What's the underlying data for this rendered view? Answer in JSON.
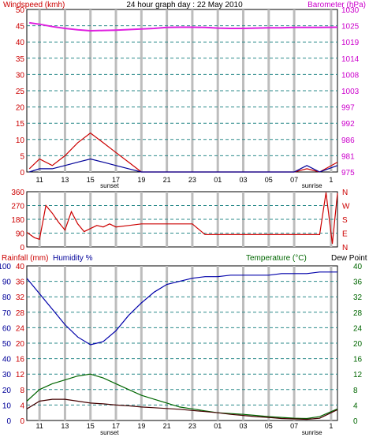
{
  "header": {
    "left_title": "Windspeed (kmh)",
    "center_title": "24 hour graph day : 22 May 2010",
    "right_title": "Barometer (hPa)",
    "rain_label": "Rainfall (mm)",
    "humidity_label": "Humidity %",
    "temp_label": "Temperature (°C)",
    "dew_label": "Dew Point"
  },
  "colors": {
    "wind": "#cc0000",
    "gust": "#000099",
    "barometer": "#e020e0",
    "direction": "#cc0000",
    "humidity": "#0000aa",
    "temperature": "#006600",
    "dewpoint": "#440000",
    "rain": "#008800",
    "grid_dash": "#2a8a8a",
    "vband": "#bdbdbd"
  },
  "x_ticks": [
    "11",
    "13",
    "15",
    "17",
    "19",
    "21",
    "23",
    "01",
    "03",
    "05",
    "07",
    "1"
  ],
  "x_sub": {
    "sunset": "sunset",
    "sunrise": "sunrise"
  },
  "chart_data": [
    {
      "type": "line",
      "name": "wind_barometer",
      "left_axis": {
        "label": "Windspeed (kmh)",
        "ticks": [
          "50",
          "45",
          "40",
          "35",
          "30",
          "25",
          "20",
          "15",
          "10",
          "5",
          "0"
        ],
        "ylim": [
          0,
          50
        ]
      },
      "right_axis": {
        "label": "Barometer (hPa)",
        "ticks": [
          "1030",
          "1025",
          "1019",
          "1014",
          "1008",
          "1003",
          "997",
          "992",
          "986",
          "981",
          "975"
        ],
        "ylim": [
          975,
          1030
        ]
      },
      "x": [
        10.2,
        11,
        12,
        13,
        14,
        15,
        16,
        17,
        18,
        19,
        20,
        21,
        22,
        23,
        24,
        25,
        26,
        27,
        28,
        29,
        30,
        31,
        32,
        33,
        34.4
      ],
      "series": [
        {
          "name": "Barometer",
          "axis": "right",
          "values": [
            1025.5,
            1025,
            1024.2,
            1023.6,
            1023.1,
            1022.8,
            1022.9,
            1023.0,
            1023.2,
            1023.4,
            1023.6,
            1023.9,
            1024.0,
            1024.0,
            1023.9,
            1023.7,
            1023.6,
            1023.6,
            1023.7,
            1023.8,
            1023.8,
            1023.9,
            1023.9,
            1023.9,
            1024.0
          ]
        },
        {
          "name": "Windspeed",
          "axis": "left",
          "values": [
            1,
            4,
            2,
            5,
            9,
            12,
            9,
            6,
            3,
            0,
            0,
            0,
            0,
            0,
            0,
            0,
            0,
            0,
            0,
            0,
            0,
            0,
            1,
            0,
            3
          ]
        },
        {
          "name": "Gust",
          "axis": "left",
          "values": [
            0,
            1,
            1,
            2,
            3,
            4,
            3,
            2,
            1,
            0,
            0,
            0,
            0,
            0,
            0,
            0,
            0,
            0,
            0,
            0,
            0,
            0,
            2,
            0,
            2
          ]
        }
      ]
    },
    {
      "type": "line",
      "name": "wind_direction",
      "left_axis": {
        "ticks": [
          "360",
          "270",
          "180",
          "90",
          "0"
        ],
        "ylim": [
          0,
          360
        ]
      },
      "right_axis": {
        "ticks": [
          "N",
          "W",
          "S",
          "E",
          "N"
        ]
      },
      "x": [
        10,
        10.6,
        11,
        11.5,
        12,
        12.5,
        13,
        13.5,
        14,
        14.5,
        15,
        15.5,
        16,
        16.5,
        17,
        18,
        19,
        20,
        21,
        22,
        23,
        24,
        25,
        26,
        27,
        28,
        29,
        30,
        31,
        32,
        33,
        33.5,
        34,
        34.4
      ],
      "values": [
        95,
        60,
        50,
        270,
        220,
        160,
        110,
        230,
        150,
        100,
        120,
        140,
        130,
        150,
        130,
        140,
        150,
        150,
        150,
        150,
        150,
        80,
        80,
        80,
        80,
        80,
        80,
        80,
        80,
        80,
        80,
        355,
        20,
        350
      ]
    },
    {
      "type": "line",
      "name": "temp_humidity",
      "left_axis": {
        "labels": [
          "Rainfall (mm)",
          "Humidity %"
        ],
        "ticks": [
          "100",
          "90",
          "80",
          "70",
          "60",
          "50",
          "40",
          "30",
          "20",
          "10",
          "0"
        ],
        "ticks_inner": [
          "40",
          "36",
          "32",
          "28",
          "24",
          "20",
          "16",
          "12",
          "8",
          "4",
          "0"
        ],
        "ylim": [
          0,
          100
        ]
      },
      "right_axis": {
        "labels": [
          "Temperature (°C)",
          "Dew Point"
        ],
        "ticks": [
          "40",
          "36",
          "32",
          "28",
          "24",
          "20",
          "16",
          "12",
          "8",
          "4",
          "0"
        ],
        "ylim": [
          0,
          40
        ]
      },
      "x": [
        10,
        11,
        12,
        13,
        14,
        15,
        16,
        17,
        18,
        19,
        20,
        21,
        22,
        23,
        24,
        25,
        26,
        27,
        28,
        29,
        30,
        31,
        32,
        33,
        34.4
      ],
      "series": [
        {
          "name": "Humidity",
          "values": [
            92,
            82,
            72,
            62,
            54,
            49,
            51,
            58,
            68,
            76,
            83,
            88,
            90,
            92,
            93,
            93,
            94,
            94,
            94,
            94,
            95,
            95,
            95,
            96,
            96
          ]
        },
        {
          "name": "Temperature",
          "values": [
            5,
            8,
            9.5,
            10.5,
            11.5,
            12,
            11,
            9.5,
            8,
            6.5,
            5.5,
            4.5,
            3.5,
            3,
            2.5,
            2,
            1.8,
            1.6,
            1.3,
            1.0,
            0.8,
            0.6,
            0.5,
            1.0,
            3.0
          ]
        },
        {
          "name": "Dew Point",
          "values": [
            3,
            5,
            5.5,
            5.5,
            5,
            4.5,
            4.3,
            4,
            3.8,
            3.5,
            3.3,
            3.1,
            2.9,
            2.6,
            2.3,
            2,
            1.6,
            1.3,
            1.0,
            0.8,
            0.5,
            0.4,
            0.3,
            0.6,
            2.8
          ]
        }
      ]
    }
  ]
}
